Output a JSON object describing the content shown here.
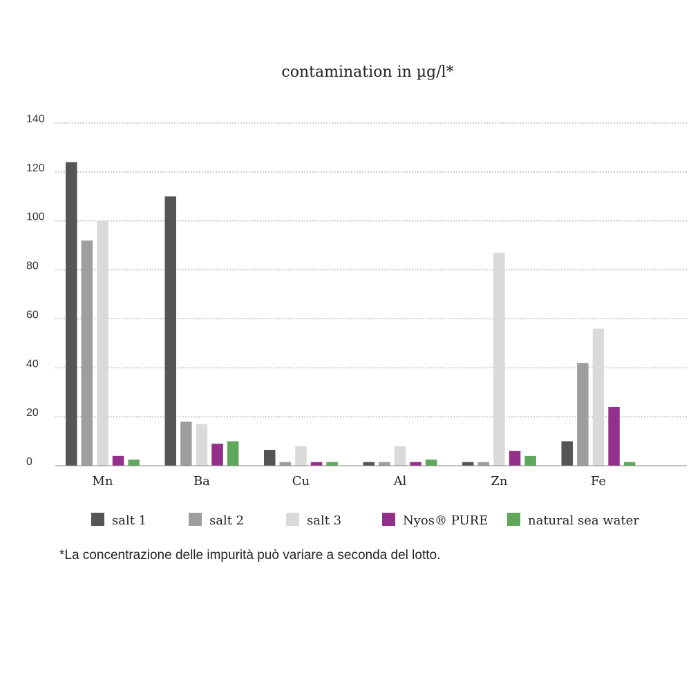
{
  "chart_data": {
    "type": "bar",
    "title": "contamination in µg/l*",
    "xlabel": "",
    "ylabel": "",
    "ylim": [
      0,
      140
    ],
    "yticks": [
      0,
      20,
      40,
      60,
      80,
      100,
      120,
      140
    ],
    "grid": true,
    "legend_position": "bottom",
    "categories": [
      "Mn",
      "Ba",
      "Cu",
      "Al",
      "Zn",
      "Fe"
    ],
    "series": [
      {
        "name": "salt 1",
        "color": "#555555",
        "values": [
          124,
          110,
          6.5,
          1.5,
          1.5,
          10
        ]
      },
      {
        "name": "salt 2",
        "color": "#9e9e9e",
        "values": [
          92,
          18,
          1.5,
          1.5,
          1.5,
          42
        ]
      },
      {
        "name": "salt 3",
        "color": "#dadada",
        "values": [
          100,
          17,
          8,
          8,
          87,
          56
        ]
      },
      {
        "name": "Nyos® PURE",
        "color": "#93308a",
        "values": [
          4,
          9,
          1.5,
          1.5,
          6,
          24
        ]
      },
      {
        "name": "natural sea water",
        "color": "#5fa75a",
        "values": [
          2.5,
          10,
          1.5,
          2.5,
          4,
          1.5
        ]
      }
    ],
    "footnote": "*La concentrazione delle impurità può variare a seconda del lotto."
  }
}
